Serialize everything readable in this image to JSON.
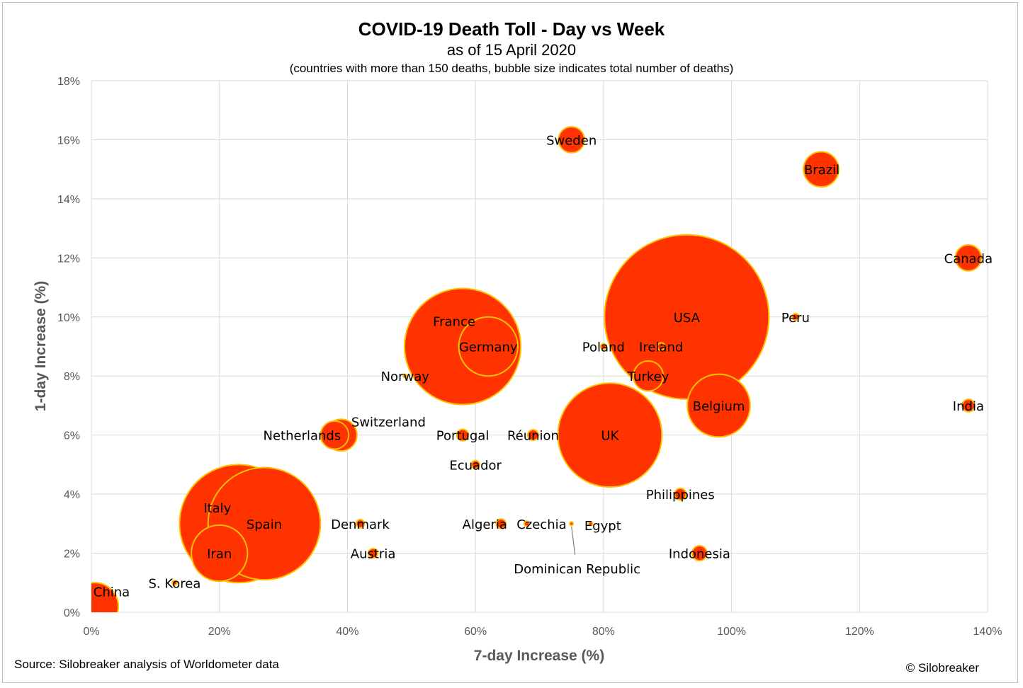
{
  "chart_data": {
    "type": "bubble",
    "title": "COVID-19 Death Toll - Day vs Week",
    "subtitle": "as of 15 April 2020",
    "note": "(countries with more than 150 deaths, bubble size indicates total number of deaths)",
    "xlabel": "7-day Increase (%)",
    "ylabel": "1-day Increase (%)",
    "xlim": [
      0,
      140
    ],
    "ylim": [
      0,
      18
    ],
    "x_ticks": [
      "0%",
      "20%",
      "40%",
      "60%",
      "80%",
      "100%",
      "120%",
      "140%"
    ],
    "y_ticks": [
      "0%",
      "2%",
      "4%",
      "6%",
      "8%",
      "10%",
      "12%",
      "14%",
      "16%",
      "18%"
    ],
    "grid": true,
    "colors": {
      "bubble_fill": "#ff3300",
      "bubble_stroke": "#ffc000",
      "grid": "#d9d9d9"
    },
    "points": [
      {
        "name": "China",
        "x": 0.5,
        "y": 0.2,
        "size": 1.0
      },
      {
        "name": "S. Korea",
        "x": 13,
        "y": 1,
        "size": 0.01
      },
      {
        "name": "Italy",
        "x": 23,
        "y": 3,
        "size": 6.2
      },
      {
        "name": "Spain",
        "x": 27,
        "y": 3,
        "size": 5.6
      },
      {
        "name": "Iran",
        "x": 20,
        "y": 2,
        "size": 1.4
      },
      {
        "name": "Netherlands",
        "x": 38,
        "y": 6,
        "size": 0.35
      },
      {
        "name": "Switzerland",
        "x": 39,
        "y": 6,
        "size": 0.45
      },
      {
        "name": "Denmark",
        "x": 42,
        "y": 3,
        "size": 0.03
      },
      {
        "name": "Austria",
        "x": 44,
        "y": 2,
        "size": 0.04
      },
      {
        "name": "Norway",
        "x": 49,
        "y": 8,
        "size": 0.005
      },
      {
        "name": "France",
        "x": 58,
        "y": 9,
        "size": 6.0
      },
      {
        "name": "Germany",
        "x": 62,
        "y": 9,
        "size": 1.55
      },
      {
        "name": "Portugal",
        "x": 58,
        "y": 6,
        "size": 0.06
      },
      {
        "name": "Ecuador",
        "x": 60,
        "y": 5,
        "size": 0.03
      },
      {
        "name": "Algeria",
        "x": 64,
        "y": 3,
        "size": 0.04
      },
      {
        "name": "Czechia",
        "x": 68,
        "y": 3,
        "size": 0.012
      },
      {
        "name": "Réunion",
        "x": 69,
        "y": 6,
        "size": 0.05
      },
      {
        "name": "Dominican Republic",
        "x": 75,
        "y": 3,
        "size": 0.005
      },
      {
        "name": "Sweden",
        "x": 75,
        "y": 16,
        "size": 0.3
      },
      {
        "name": "Egypt",
        "x": 78,
        "y": 3,
        "size": 0.006
      },
      {
        "name": "UK",
        "x": 81,
        "y": 6,
        "size": 4.8
      },
      {
        "name": "Poland",
        "x": 80,
        "y": 9,
        "size": 0.015
      },
      {
        "name": "Ireland",
        "x": 89,
        "y": 9,
        "size": 0.025
      },
      {
        "name": "Turkey",
        "x": 87,
        "y": 8,
        "size": 0.4
      },
      {
        "name": "USA",
        "x": 93,
        "y": 10,
        "size": 12.0
      },
      {
        "name": "Belgium",
        "x": 98,
        "y": 7,
        "size": 1.75
      },
      {
        "name": "Philippines",
        "x": 92,
        "y": 4,
        "size": 0.06
      },
      {
        "name": "Indonesia",
        "x": 95,
        "y": 2,
        "size": 0.1
      },
      {
        "name": "Peru",
        "x": 110,
        "y": 10,
        "size": 0.02
      },
      {
        "name": "Brazil",
        "x": 114,
        "y": 15,
        "size": 0.55
      },
      {
        "name": "Canada",
        "x": 137,
        "y": 12,
        "size": 0.3
      },
      {
        "name": "India",
        "x": 137,
        "y": 7,
        "size": 0.07
      }
    ]
  },
  "footer": {
    "source": "Source: Silobreaker analysis of Worldometer data",
    "copyright": "© Silobreaker"
  }
}
